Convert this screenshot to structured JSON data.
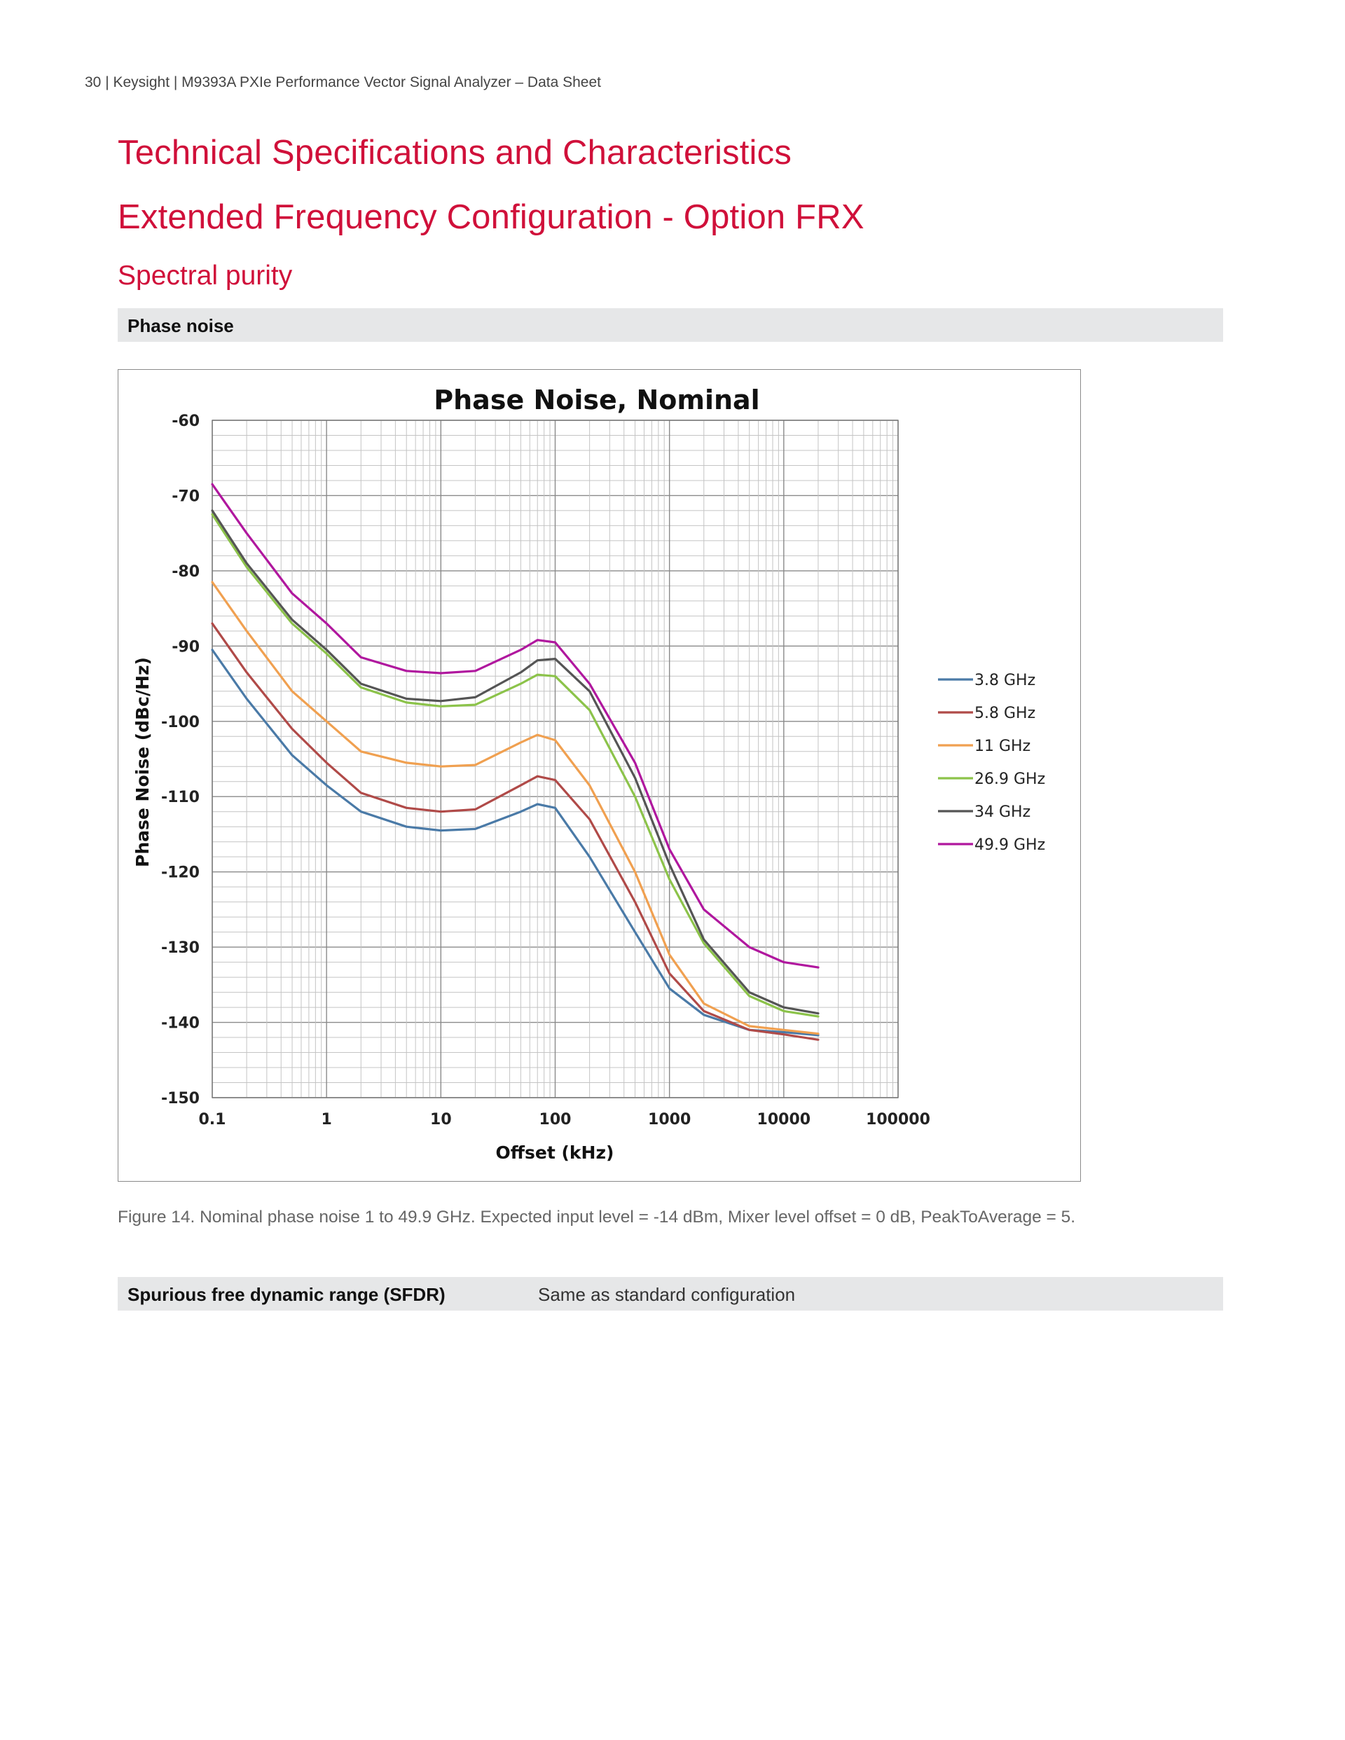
{
  "header": {
    "running_title": "30 | Keysight | M9393A PXIe Performance Vector Signal Analyzer – Data Sheet"
  },
  "headings": {
    "title1": "Technical Specifications and Characteristics",
    "title2": "Extended Frequency Configuration - Option FRX",
    "section": "Spectral purity"
  },
  "phase_noise_bar": {
    "label": "Phase noise"
  },
  "caption": "Figure 14. Nominal phase noise 1 to 49.9 GHz. Expected input level = -14 dBm, Mixer level offset = 0 dB, PeakToAverage = 5.",
  "sfdr_row": {
    "label": "Spurious free dynamic range (SFDR)",
    "value": "Same as standard configuration"
  },
  "chart_data": {
    "type": "line",
    "title": "Phase Noise, Nominal",
    "xlabel": "Offset (kHz)",
    "ylabel": "Phase Noise (dBc/Hz)",
    "x_scale": "log",
    "xlim": [
      0.1,
      100000
    ],
    "ylim": [
      -150,
      -60
    ],
    "x_ticks": [
      "0.1",
      "1",
      "10",
      "100",
      "1000",
      "10000",
      "100000"
    ],
    "y_ticks": [
      "-60",
      "-70",
      "-80",
      "-90",
      "-100",
      "-110",
      "-120",
      "-130",
      "-140",
      "-150"
    ],
    "grid": true,
    "legend_position": "right",
    "x": [
      0.1,
      0.2,
      0.5,
      1,
      2,
      5,
      10,
      20,
      50,
      70,
      100,
      200,
      500,
      1000,
      2000,
      5000,
      10000,
      20000
    ],
    "series": [
      {
        "name": "3.8 GHz",
        "color": "#4a7aa7",
        "values": [
          -90.5,
          -97,
          -104.5,
          -108.5,
          -112,
          -114,
          -114.5,
          -114.3,
          -112,
          -111,
          -111.5,
          -118,
          -128,
          -135.5,
          -139,
          -141,
          -141.3,
          -141.7
        ]
      },
      {
        "name": "5.8 GHz",
        "color": "#b04a48",
        "values": [
          -87,
          -93.5,
          -101,
          -105.5,
          -109.5,
          -111.5,
          -112,
          -111.7,
          -108.5,
          -107.3,
          -107.8,
          -113,
          -124,
          -133.5,
          -138.5,
          -141,
          -141.6,
          -142.3
        ]
      },
      {
        "name": "11 GHz",
        "color": "#f0a050",
        "values": [
          -81.5,
          -88,
          -96,
          -100,
          -104,
          -105.5,
          -106,
          -105.8,
          -102.8,
          -101.8,
          -102.5,
          -108.5,
          -120,
          -131,
          -137.5,
          -140.5,
          -141,
          -141.5
        ]
      },
      {
        "name": "26.9 GHz",
        "color": "#8cc34a",
        "values": [
          -72.5,
          -79.5,
          -87,
          -91,
          -95.5,
          -97.5,
          -98,
          -97.8,
          -95,
          -93.8,
          -94,
          -98.5,
          -110,
          -121,
          -129.5,
          -136.5,
          -138.5,
          -139.2
        ]
      },
      {
        "name": "34 GHz",
        "color": "#555555",
        "values": [
          -72,
          -79,
          -86.5,
          -90.5,
          -95,
          -97,
          -97.3,
          -96.8,
          -93.5,
          -91.9,
          -91.7,
          -96,
          -107.5,
          -119,
          -129,
          -136,
          -138,
          -138.8
        ]
      },
      {
        "name": "49.9 GHz",
        "color": "#b0179e",
        "values": [
          -68.5,
          -75,
          -83,
          -87,
          -91.5,
          -93.3,
          -93.6,
          -93.3,
          -90.5,
          -89.2,
          -89.5,
          -95,
          -105.5,
          -117,
          -125,
          -130,
          -132,
          -132.7
        ]
      }
    ]
  }
}
